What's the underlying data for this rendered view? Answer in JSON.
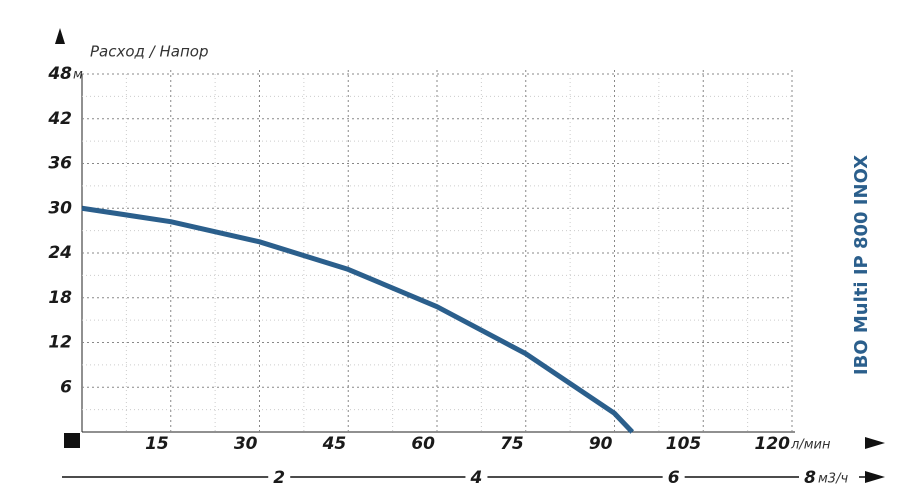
{
  "chart_data": {
    "type": "line",
    "title": "IBO Multi IP 800 INOX",
    "axis_label": "Расход / Напор",
    "y_unit": "м",
    "x_unit": "л/мин",
    "x2_unit": "м3/ч",
    "x": [
      0,
      15,
      30,
      45,
      60,
      75,
      90,
      93
    ],
    "series": [
      {
        "name": "IBO Multi IP 800 INOX",
        "color": "#2b5f8c",
        "values": [
          30,
          28.2,
          25.5,
          21.8,
          16.8,
          10.5,
          2.5,
          0
        ]
      }
    ],
    "xlim": [
      0,
      120
    ],
    "xticks": [
      15,
      30,
      45,
      60,
      75,
      90,
      105,
      120
    ],
    "ylim": [
      0,
      48
    ],
    "yticks": [
      6,
      12,
      18,
      24,
      30,
      36,
      42,
      48
    ],
    "x2ticks": [
      2,
      4,
      6,
      8
    ],
    "grid": true
  }
}
